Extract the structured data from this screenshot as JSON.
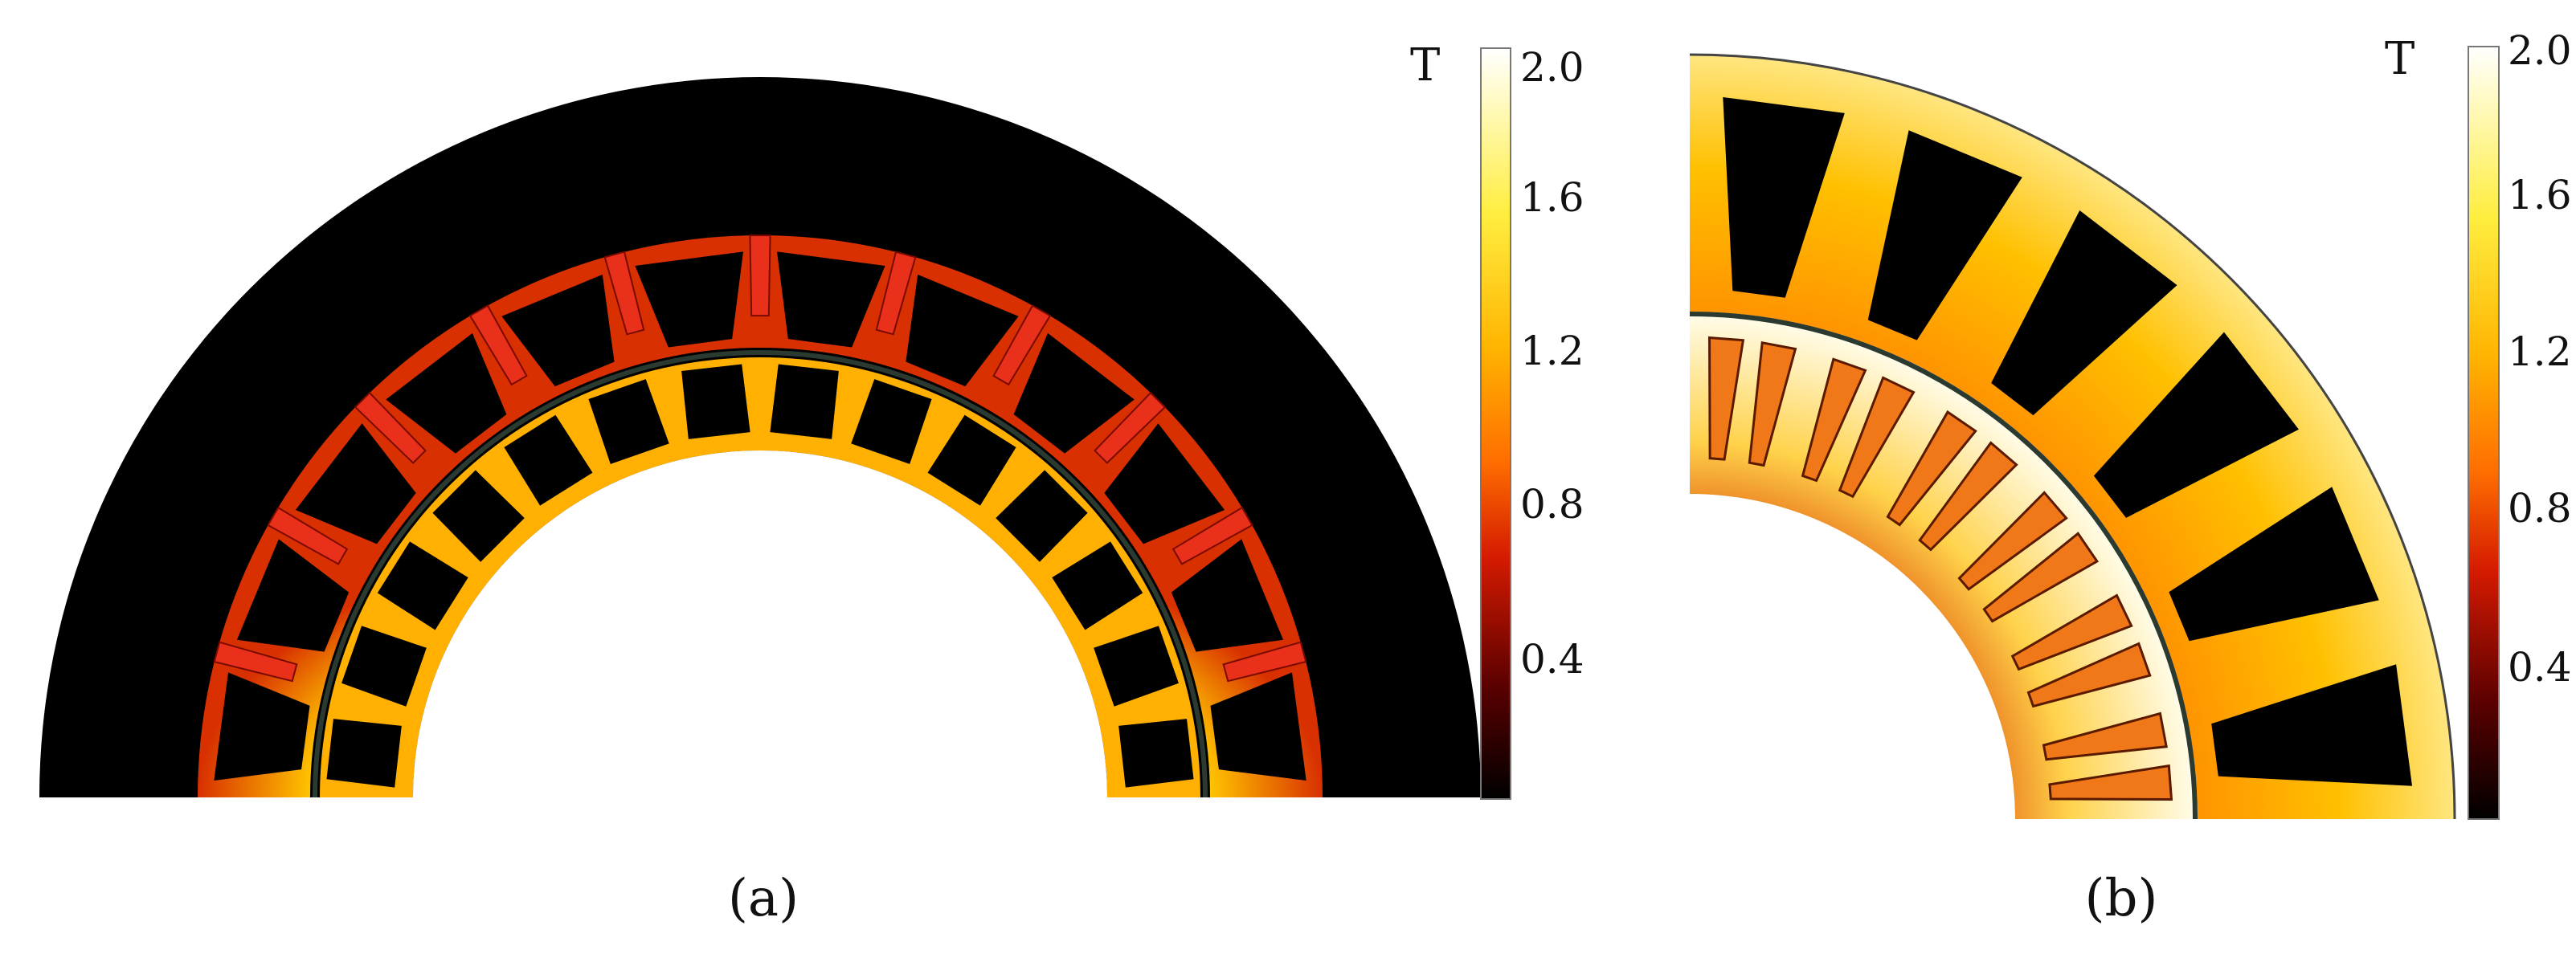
{
  "figure": {
    "panels": [
      {
        "id": "a",
        "caption": "(a)",
        "colorbar": {
          "unit": "T",
          "ticks": [
            "2.0",
            "1.6",
            "1.2",
            "0.8",
            "0.4"
          ]
        }
      },
      {
        "id": "b",
        "caption": "(b)",
        "colorbar": {
          "unit": "T",
          "ticks": [
            "2.0",
            "1.6",
            "1.2",
            "0.8",
            "0.4"
          ]
        }
      }
    ],
    "colors": {
      "air": "#000000",
      "low_field": "#2a0000",
      "mid_field": "#d41a00",
      "field_0_8": "#ff6e00",
      "field_1_2": "#ffb400",
      "field_1_6": "#ffee40",
      "high_field": "#ffffff",
      "magnet": "#e8301a",
      "magnet_b": "#f07818"
    }
  }
}
